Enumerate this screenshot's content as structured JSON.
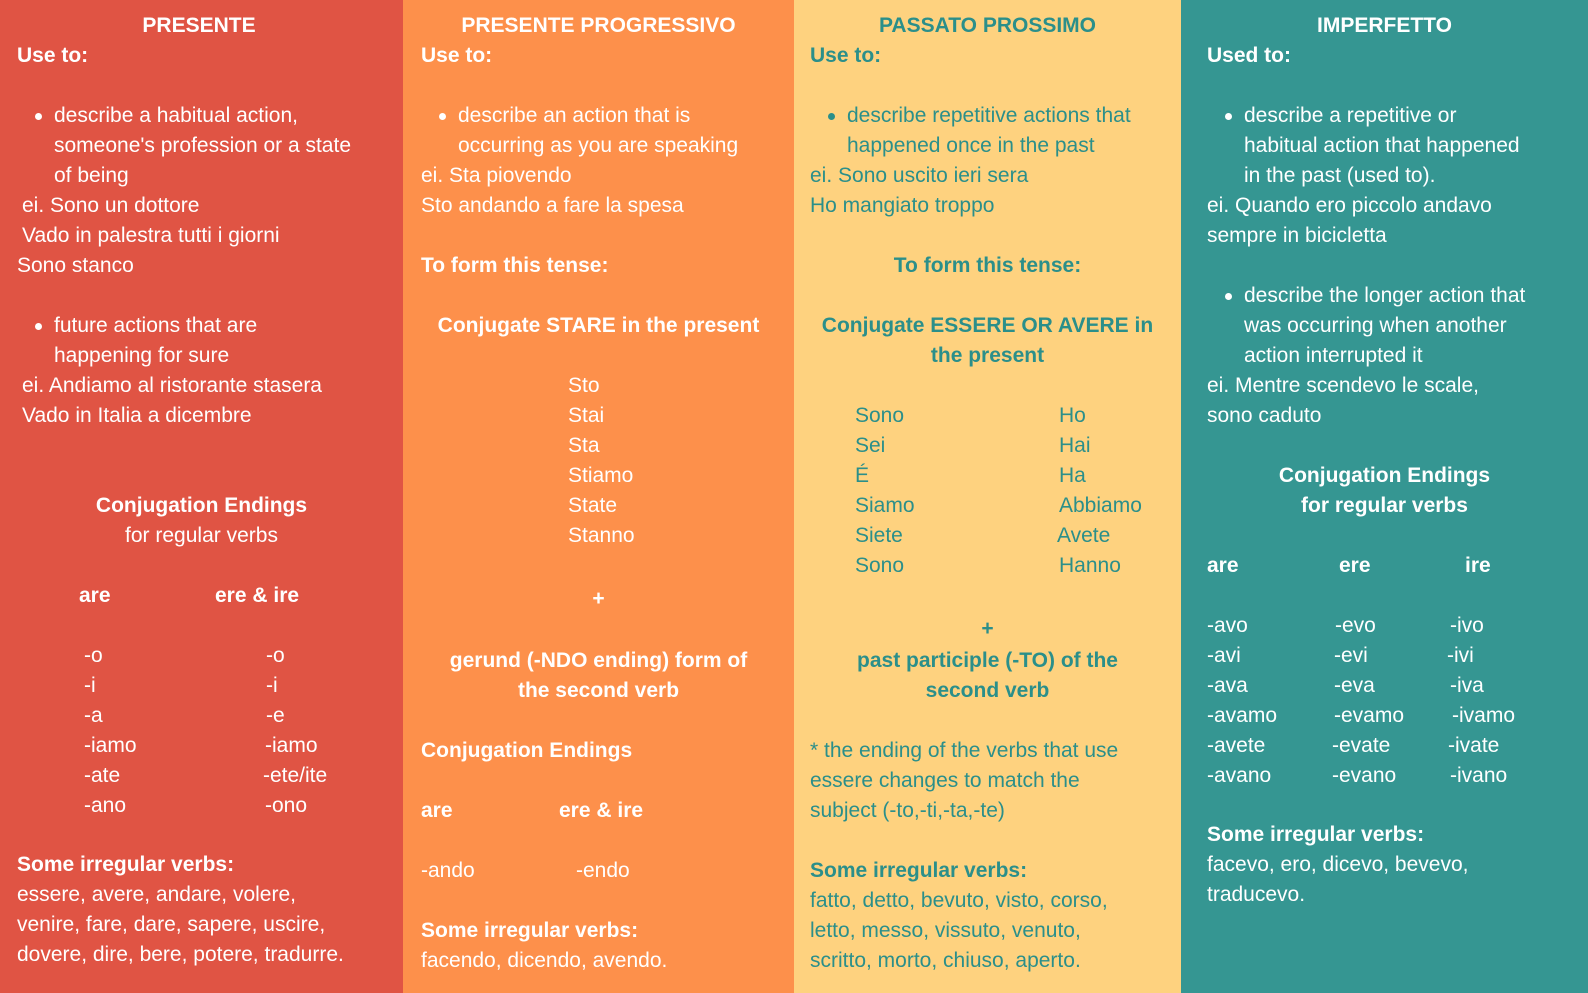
{
  "presente": {
    "title": "PRESENTE",
    "use_to": "Use to:",
    "bullet1": [
      "describe a habitual action,",
      "someone's profession or a state",
      "of being"
    ],
    "examples1": [
      "ei. Sono un dottore",
      "Vado in palestra tutti i giorni",
      "Sono stanco"
    ],
    "bullet2": [
      "future actions that are",
      "happening for sure"
    ],
    "examples2": [
      "ei. Andiamo al ristorante stasera",
      "Vado in Italia a dicembre"
    ],
    "endings_title": "Conjugation Endings",
    "endings_sub": "for regular verbs",
    "headers": [
      "are",
      "ere  & ire"
    ],
    "col_are": [
      "-o",
      "-i",
      "-a",
      "-iamo",
      "-ate",
      "-ano"
    ],
    "col_ere": [
      "-o",
      "-i",
      "-e",
      "-iamo",
      "-ete/ite",
      "-ono"
    ],
    "irregular_title": "Some irregular verbs:",
    "irregular": [
      "essere, avere, andare, volere,",
      "venire, fare, dare, sapere, uscire,",
      "dovere, dire, bere, potere, tradurre."
    ]
  },
  "progressivo": {
    "title": "PRESENTE PROGRESSIVO",
    "use_to": "Use to:",
    "bullet1": [
      "describe an action that is",
      "occurring as you are speaking"
    ],
    "examples1": [
      "ei. Sta piovendo",
      "Sto andando a fare la spesa"
    ],
    "form_title": "To form this tense:",
    "conjugate": "Conjugate STARE in the present",
    "stare": [
      "Sto",
      "Stai",
      "Sta",
      "Stiamo",
      "State",
      "Stanno"
    ],
    "plus": "+",
    "gerund": [
      "gerund (-NDO ending) form of",
      "the second verb"
    ],
    "endings_title": "Conjugation Endings",
    "headers": [
      "are",
      "ere  & ire"
    ],
    "endings": [
      "-ando",
      "-endo"
    ],
    "irregular_title": "Some irregular verbs:",
    "irregular": [
      "facendo, dicendo, avendo."
    ]
  },
  "passato": {
    "title": "PASSATO PROSSIMO",
    "use_to": "Use to:",
    "bullet1": [
      "describe repetitive actions that",
      "happened once in the past"
    ],
    "examples1": [
      "ei. Sono uscito ieri sera",
      "Ho mangiato troppo"
    ],
    "form_title": "To form this tense:",
    "conjugate": [
      "Conjugate ESSERE OR AVERE in",
      "the present"
    ],
    "essere": [
      "Sono",
      "Sei",
      "É",
      "Siamo",
      "Siete",
      "Sono"
    ],
    "avere": [
      "Ho",
      "Hai",
      "Ha",
      "Abbiamo",
      "Avete",
      "Hanno"
    ],
    "plus": "+",
    "participle": [
      "past participle (-TO) of the",
      "second verb"
    ],
    "note": [
      "* the ending of the verbs that use",
      "essere changes to match the",
      "subject (-to,-ti,-ta,-te)"
    ],
    "irregular_title": "Some irregular verbs:",
    "irregular": [
      "fatto, detto, bevuto, visto, corso,",
      "letto, messo, vissuto, venuto,",
      "scritto, morto, chiuso, aperto."
    ]
  },
  "imperfetto": {
    "title": "IMPERFETTO",
    "use_to": "Used to:",
    "bullet1": [
      "describe a repetitive or",
      "habitual action that happened",
      "in the past (used to)."
    ],
    "examples1": [
      "ei. Quando ero piccolo andavo",
      "sempre in bicicletta"
    ],
    "bullet2": [
      "describe the longer action that",
      "was occurring when another",
      "action interrupted it"
    ],
    "examples2": [
      "ei. Mentre scendevo le scale,",
      "sono caduto"
    ],
    "endings_title": [
      "Conjugation Endings",
      "for regular verbs"
    ],
    "headers": [
      "are",
      "ere",
      "ire"
    ],
    "col_are": [
      "-avo",
      "-avi",
      "-ava",
      "-avamo",
      "-avete",
      "-avano"
    ],
    "col_ere": [
      "-evo",
      "-evi",
      "-eva",
      "-evamo",
      "-evate",
      "-evano"
    ],
    "col_ire": [
      "-ivo",
      "-ivi",
      "-iva",
      "-ivamo",
      "-ivate",
      "-ivano"
    ],
    "irregular_title": "Some irregular verbs:",
    "irregular": [
      "facevo, ero, dicevo, bevevo,",
      "traducevo."
    ]
  }
}
